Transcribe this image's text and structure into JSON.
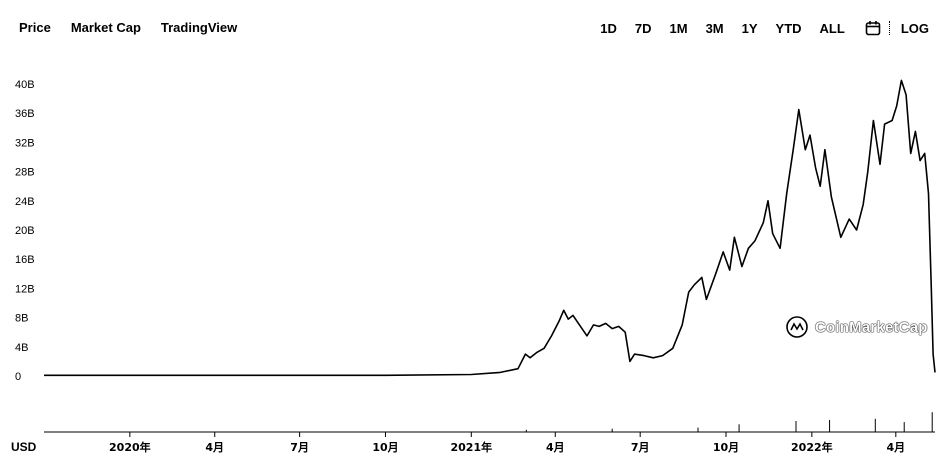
{
  "tabs": [
    {
      "label": "Price"
    },
    {
      "label": "Market Cap"
    },
    {
      "label": "TradingView"
    }
  ],
  "ranges": [
    "1D",
    "7D",
    "1M",
    "3M",
    "1Y",
    "YTD",
    "ALL"
  ],
  "log_label": "LOG",
  "icons": {
    "calendar": "calendar-icon",
    "logo": "coinmarketcap-logo-icon"
  },
  "watermark": "CoinMarketCap",
  "currency_label": "USD",
  "chart_data": {
    "type": "line",
    "title": "",
    "xlabel": "",
    "ylabel": "",
    "y_unit": "B",
    "ylim": [
      0,
      42
    ],
    "y_ticks": [
      {
        "value": 0,
        "label": "0"
      },
      {
        "value": 4,
        "label": "4B"
      },
      {
        "value": 8,
        "label": "8B"
      },
      {
        "value": 12,
        "label": "12B"
      },
      {
        "value": 16,
        "label": "16B"
      },
      {
        "value": 20,
        "label": "20B"
      },
      {
        "value": 24,
        "label": "24B"
      },
      {
        "value": 28,
        "label": "28B"
      },
      {
        "value": 32,
        "label": "32B"
      },
      {
        "value": 36,
        "label": "36B"
      },
      {
        "value": 40,
        "label": "40B"
      }
    ],
    "xlim": [
      "2019-10-01",
      "2022-05-13"
    ],
    "x_ticks": [
      {
        "date": "2020-01-01",
        "label": "2020年"
      },
      {
        "date": "2020-04-01",
        "label": "4月"
      },
      {
        "date": "2020-07-01",
        "label": "7月"
      },
      {
        "date": "2020-10-01",
        "label": "10月"
      },
      {
        "date": "2021-01-01",
        "label": "2021年"
      },
      {
        "date": "2021-04-01",
        "label": "4月"
      },
      {
        "date": "2021-07-01",
        "label": "7月"
      },
      {
        "date": "2021-10-01",
        "label": "10月"
      },
      {
        "date": "2022-01-01",
        "label": "2022年"
      },
      {
        "date": "2022-04-01",
        "label": "4月"
      }
    ],
    "grid": false,
    "series": [
      {
        "color": "#000000",
        "points": [
          [
            "2019-10-01",
            0.1
          ],
          [
            "2020-01-01",
            0.1
          ],
          [
            "2020-04-01",
            0.1
          ],
          [
            "2020-07-01",
            0.1
          ],
          [
            "2020-10-01",
            0.1
          ],
          [
            "2021-01-01",
            0.2
          ],
          [
            "2021-02-01",
            0.5
          ],
          [
            "2021-02-20",
            1.0
          ],
          [
            "2021-02-28",
            3.0
          ],
          [
            "2021-03-05",
            2.5
          ],
          [
            "2021-03-12",
            3.2
          ],
          [
            "2021-03-20",
            3.8
          ],
          [
            "2021-03-28",
            5.5
          ],
          [
            "2021-04-05",
            7.5
          ],
          [
            "2021-04-10",
            9.0
          ],
          [
            "2021-04-15",
            7.8
          ],
          [
            "2021-04-20",
            8.3
          ],
          [
            "2021-04-28",
            6.8
          ],
          [
            "2021-05-05",
            5.5
          ],
          [
            "2021-05-12",
            7.0
          ],
          [
            "2021-05-18",
            6.8
          ],
          [
            "2021-05-25",
            7.2
          ],
          [
            "2021-06-01",
            6.5
          ],
          [
            "2021-06-08",
            6.8
          ],
          [
            "2021-06-15",
            6.0
          ],
          [
            "2021-06-20",
            2.0
          ],
          [
            "2021-06-25",
            3.0
          ],
          [
            "2021-07-05",
            2.8
          ],
          [
            "2021-07-15",
            2.5
          ],
          [
            "2021-07-25",
            2.8
          ],
          [
            "2021-08-05",
            3.8
          ],
          [
            "2021-08-15",
            7.0
          ],
          [
            "2021-08-22",
            11.5
          ],
          [
            "2021-08-28",
            12.5
          ],
          [
            "2021-09-05",
            13.5
          ],
          [
            "2021-09-10",
            10.5
          ],
          [
            "2021-09-20",
            14.0
          ],
          [
            "2021-09-28",
            17.0
          ],
          [
            "2021-10-05",
            14.5
          ],
          [
            "2021-10-10",
            19.0
          ],
          [
            "2021-10-18",
            15.0
          ],
          [
            "2021-10-25",
            17.5
          ],
          [
            "2021-11-01",
            18.5
          ],
          [
            "2021-11-10",
            21.0
          ],
          [
            "2021-11-15",
            24.0
          ],
          [
            "2021-11-20",
            19.5
          ],
          [
            "2021-11-28",
            17.5
          ],
          [
            "2021-12-05",
            25.0
          ],
          [
            "2021-12-12",
            31.0
          ],
          [
            "2021-12-18",
            36.5
          ],
          [
            "2021-12-25",
            31.0
          ],
          [
            "2021-12-30",
            33.0
          ],
          [
            "2022-01-05",
            28.5
          ],
          [
            "2022-01-10",
            26.0
          ],
          [
            "2022-01-15",
            31.0
          ],
          [
            "2022-01-22",
            24.5
          ],
          [
            "2022-02-01",
            19.0
          ],
          [
            "2022-02-10",
            21.5
          ],
          [
            "2022-02-18",
            20.0
          ],
          [
            "2022-02-25",
            23.5
          ],
          [
            "2022-03-02",
            28.0
          ],
          [
            "2022-03-08",
            35.0
          ],
          [
            "2022-03-15",
            29.0
          ],
          [
            "2022-03-20",
            34.5
          ],
          [
            "2022-03-28",
            35.0
          ],
          [
            "2022-04-02",
            37.0
          ],
          [
            "2022-04-07",
            40.5
          ],
          [
            "2022-04-12",
            38.5
          ],
          [
            "2022-04-17",
            30.5
          ],
          [
            "2022-04-22",
            33.5
          ],
          [
            "2022-04-27",
            29.5
          ],
          [
            "2022-05-02",
            30.5
          ],
          [
            "2022-05-06",
            25.0
          ],
          [
            "2022-05-09",
            12.0
          ],
          [
            "2022-05-11",
            3.0
          ],
          [
            "2022-05-13",
            0.5
          ]
        ]
      }
    ],
    "volume": [
      [
        "2021-03-01",
        0.1
      ],
      [
        "2021-06-01",
        0.15
      ],
      [
        "2021-09-01",
        0.2
      ],
      [
        "2021-10-15",
        0.35
      ],
      [
        "2021-12-15",
        0.5
      ],
      [
        "2022-01-20",
        0.55
      ],
      [
        "2022-03-10",
        0.6
      ],
      [
        "2022-04-10",
        0.45
      ],
      [
        "2022-05-10",
        0.9
      ]
    ]
  }
}
